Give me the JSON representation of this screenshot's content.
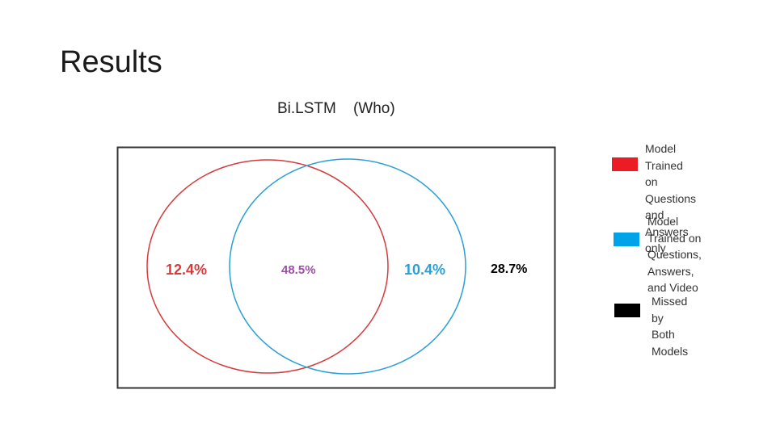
{
  "slide": {
    "title": "Results"
  },
  "chart_data": {
    "type": "venn",
    "title": "Bi.LSTM    (Who)",
    "regions": [
      {
        "name": "qa_only",
        "label": "12.4%",
        "value": 12.4,
        "color": "#d63a3a"
      },
      {
        "name": "both",
        "label": "48.5%",
        "value": 48.5,
        "color": "#9b4fa5"
      },
      {
        "name": "video_only",
        "label": "10.4%",
        "value": 10.4,
        "color": "#2a9fd6"
      },
      {
        "name": "missed_both",
        "label": "28.7%",
        "value": 28.7,
        "color": "#000000"
      }
    ],
    "sets": [
      {
        "name": "qa",
        "color": "#d63a3a"
      },
      {
        "name": "video",
        "color": "#2a9fd6"
      }
    ],
    "legend": [
      {
        "label": "Model Trained on\nQuestions and\nAnswers only",
        "color": "#ec1c24"
      },
      {
        "label": "Model Trained on\nQuestions, Answers,\nand Video",
        "color": "#00a2e8"
      },
      {
        "label": "Missed by Both\nModels",
        "color": "#000000"
      }
    ],
    "legend_placement": "right"
  }
}
